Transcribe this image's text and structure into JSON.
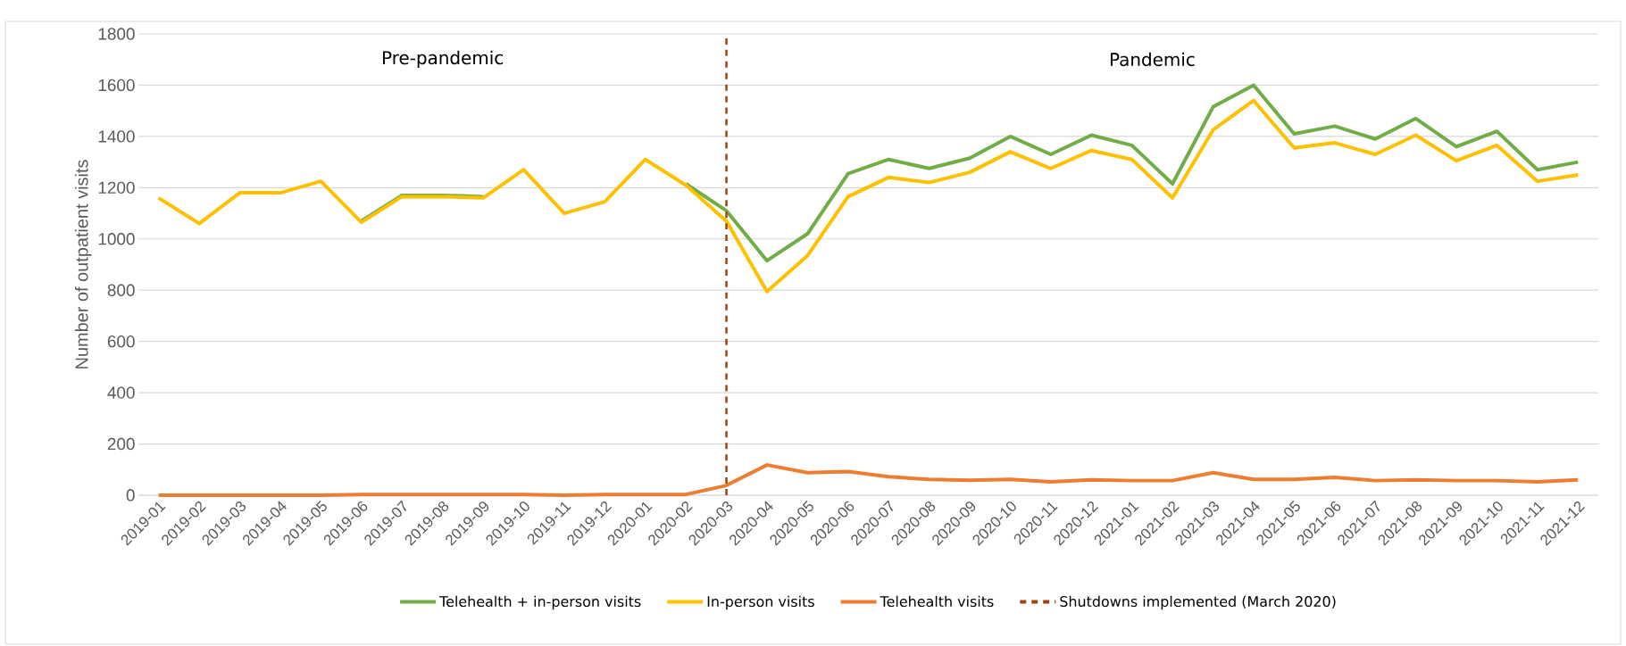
{
  "chart_data": {
    "type": "line",
    "ylabel": "Number of outpatient visits",
    "categories": [
      "2019-01",
      "2019-02",
      "2019-03",
      "2019-04",
      "2019-05",
      "2019-06",
      "2019-07",
      "2019-08",
      "2019-09",
      "2019-10",
      "2019-11",
      "2019-12",
      "2020-01",
      "2020-02",
      "2020-03",
      "2020-04",
      "2020-05",
      "2020-06",
      "2020-07",
      "2020-08",
      "2020-09",
      "2020-10",
      "2020-11",
      "2020-12",
      "2021-01",
      "2021-02",
      "2021-03",
      "2021-04",
      "2021-05",
      "2021-06",
      "2021-07",
      "2021-08",
      "2021-09",
      "2021-10",
      "2021-11",
      "2021-12"
    ],
    "series": [
      {
        "name": "Telehealth + in-person visits",
        "color": "#70ad47",
        "values": [
          null,
          null,
          null,
          null,
          null,
          1070,
          1170,
          1170,
          1165,
          null,
          null,
          null,
          null,
          1215,
          1110,
          915,
          1020,
          1255,
          1310,
          1275,
          1315,
          1400,
          1330,
          1405,
          1365,
          1215,
          1515,
          1600,
          1410,
          1440,
          1390,
          1470,
          1360,
          1420,
          1270,
          1300
        ]
      },
      {
        "name": "In-person visits",
        "color": "#ffc000",
        "values": [
          1160,
          1060,
          1180,
          1180,
          1225,
          1065,
          1165,
          1165,
          1160,
          1270,
          1100,
          1145,
          1310,
          1210,
          1070,
          795,
          935,
          1165,
          1240,
          1220,
          1260,
          1340,
          1275,
          1345,
          1310,
          1160,
          1425,
          1540,
          1355,
          1375,
          1330,
          1405,
          1305,
          1365,
          1225,
          1250
        ]
      },
      {
        "name": "Telehealth visits",
        "color": "#ed7d31",
        "values": [
          0,
          0,
          0,
          0,
          0,
          3,
          3,
          3,
          3,
          3,
          0,
          3,
          3,
          3,
          38,
          118,
          88,
          92,
          72,
          62,
          58,
          62,
          52,
          60,
          57,
          57,
          88,
          62,
          62,
          70,
          57,
          60,
          57,
          57,
          52,
          60
        ]
      }
    ],
    "ylim": [
      0,
      1800
    ],
    "yticks": [
      0,
      200,
      400,
      600,
      800,
      1000,
      1200,
      1400,
      1600,
      1800
    ],
    "grid": "y",
    "legend": "bottom",
    "marker": "none",
    "line_style": "solid",
    "ref_lines": [
      {
        "axis": "x",
        "value": "2020-03",
        "label": "Shutdowns implemented (March 2020)",
        "color": "#a0440e",
        "line_style": "dashed"
      }
    ],
    "annotations": [
      "Pre-pandemic",
      "Pandemic"
    ]
  }
}
